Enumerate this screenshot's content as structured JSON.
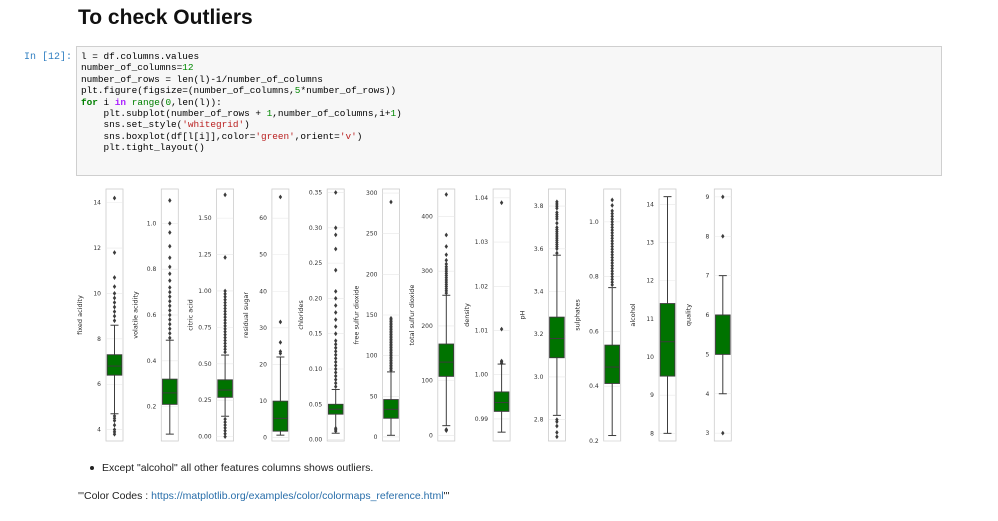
{
  "heading": "To check Outliers",
  "cell": {
    "prompt": "In [12]:",
    "code_lines": [
      [
        [
          "",
          "l = df.columns.values"
        ]
      ],
      [
        [
          "",
          "number_of_columns="
        ],
        [
          "num",
          "12"
        ]
      ],
      [
        [
          "",
          "number_of_rows = len(l)-1/number_of_columns"
        ]
      ],
      [
        [
          "",
          "plt.figure(figsize=(number_of_columns,"
        ],
        [
          "num",
          "5"
        ],
        [
          "",
          "*number_of_rows))"
        ]
      ],
      [
        [
          "kw",
          "for"
        ],
        [
          "",
          " i "
        ],
        [
          "op",
          "in"
        ],
        [
          "",
          " "
        ],
        [
          "bi",
          "range"
        ],
        [
          "",
          "("
        ],
        [
          "num",
          "0"
        ],
        [
          "",
          ",len(l)):"
        ]
      ],
      [
        [
          "",
          "    plt.subplot(number_of_rows + "
        ],
        [
          "num",
          "1"
        ],
        [
          "",
          ",number_of_columns,i+"
        ],
        [
          "num",
          "1"
        ],
        [
          "",
          ")"
        ]
      ],
      [
        [
          "",
          "    sns.set_style("
        ],
        [
          "str",
          "'whitegrid'"
        ],
        [
          "",
          ")"
        ]
      ],
      [
        [
          "",
          "    sns.boxplot(df[l[i]],color="
        ],
        [
          "str",
          "'green'"
        ],
        [
          "",
          ",orient="
        ],
        [
          "str",
          "'v'"
        ],
        [
          "",
          ")"
        ]
      ],
      [
        [
          "",
          "    plt.tight_layout()"
        ]
      ]
    ]
  },
  "chart_data": [
    {
      "type": "box",
      "ylabel": "fixed acidity",
      "ylim": [
        3.5,
        14.6
      ],
      "yticks": [
        4,
        6,
        8,
        10,
        12,
        14
      ],
      "whisker_low": 4.7,
      "q1": 6.4,
      "median": 6.8,
      "q3": 7.3,
      "whisker_high": 8.6,
      "outliers": [
        3.8,
        3.9,
        4.0,
        4.2,
        4.4,
        4.5,
        4.6,
        8.8,
        9.0,
        9.2,
        9.4,
        9.6,
        9.8,
        10.0,
        10.3,
        10.7,
        11.8,
        14.2
      ]
    },
    {
      "type": "box",
      "ylabel": "volatile acidity",
      "ylim": [
        0.05,
        1.15
      ],
      "yticks": [
        0.2,
        0.4,
        0.6,
        0.8,
        1.0
      ],
      "whisker_low": 0.08,
      "q1": 0.21,
      "median": 0.26,
      "q3": 0.32,
      "whisker_high": 0.49,
      "outliers": [
        0.5,
        0.52,
        0.54,
        0.56,
        0.58,
        0.6,
        0.62,
        0.64,
        0.66,
        0.68,
        0.7,
        0.72,
        0.75,
        0.78,
        0.81,
        0.85,
        0.9,
        0.96,
        1.0,
        1.1
      ]
    },
    {
      "type": "box",
      "ylabel": "citric acid",
      "ylim": [
        -0.03,
        1.7
      ],
      "yticks": [
        0.0,
        0.25,
        0.5,
        0.75,
        1.0,
        1.25,
        1.5
      ],
      "whisker_low": 0.14,
      "q1": 0.27,
      "median": 0.32,
      "q3": 0.39,
      "whisker_high": 0.56,
      "outliers": [
        0.0,
        0.02,
        0.04,
        0.06,
        0.08,
        0.1,
        0.12,
        0.58,
        0.6,
        0.62,
        0.64,
        0.66,
        0.68,
        0.7,
        0.72,
        0.74,
        0.76,
        0.78,
        0.8,
        0.82,
        0.84,
        0.86,
        0.88,
        0.9,
        0.92,
        0.94,
        0.96,
        0.98,
        1.0,
        1.23,
        1.66
      ]
    },
    {
      "type": "box",
      "ylabel": "residual sugar",
      "ylim": [
        -1,
        68
      ],
      "yticks": [
        0,
        10,
        20,
        30,
        40,
        50,
        60
      ],
      "whisker_low": 0.6,
      "q1": 1.7,
      "median": 5.2,
      "q3": 9.9,
      "whisker_high": 22,
      "outliers": [
        23,
        23.5,
        26,
        31.6,
        65.8
      ]
    },
    {
      "type": "box",
      "ylabel": "chlorides",
      "ylim": [
        -0.002,
        0.355
      ],
      "yticks": [
        0.0,
        0.05,
        0.1,
        0.15,
        0.2,
        0.25,
        0.3,
        0.35
      ],
      "whisker_low": 0.009,
      "q1": 0.036,
      "median": 0.043,
      "q3": 0.05,
      "whisker_high": 0.071,
      "outliers": [
        0.012,
        0.014,
        0.016,
        0.075,
        0.08,
        0.085,
        0.09,
        0.095,
        0.1,
        0.105,
        0.11,
        0.115,
        0.12,
        0.125,
        0.13,
        0.135,
        0.14,
        0.15,
        0.16,
        0.17,
        0.18,
        0.19,
        0.2,
        0.21,
        0.24,
        0.27,
        0.29,
        0.3,
        0.35
      ]
    },
    {
      "type": "box",
      "ylabel": "free sulfur dioxide",
      "ylim": [
        -5,
        305
      ],
      "yticks": [
        0,
        50,
        100,
        150,
        200,
        250,
        300
      ],
      "whisker_low": 2,
      "q1": 23,
      "median": 34,
      "q3": 46,
      "whisker_high": 80,
      "outliers": [
        82,
        84,
        86,
        88,
        90,
        92,
        94,
        96,
        98,
        100,
        102,
        104,
        106,
        108,
        110,
        112,
        114,
        116,
        118,
        120,
        122,
        124,
        126,
        128,
        130,
        132,
        134,
        136,
        138,
        140,
        142,
        144,
        146,
        289
      ]
    },
    {
      "type": "box",
      "ylabel": "total sulfur dioxide",
      "ylim": [
        -10,
        450
      ],
      "yticks": [
        0,
        100,
        200,
        300,
        400
      ],
      "whisker_low": 18,
      "q1": 108,
      "median": 134,
      "q3": 167,
      "whisker_high": 256,
      "outliers": [
        9,
        10,
        11,
        260,
        264,
        268,
        272,
        276,
        280,
        284,
        288,
        292,
        296,
        300,
        304,
        308,
        313,
        320,
        330,
        345,
        366,
        440
      ]
    },
    {
      "type": "box",
      "ylabel": "density",
      "ylim": [
        0.985,
        1.042
      ],
      "yticks": [
        0.99,
        1.0,
        1.01,
        1.02,
        1.03,
        1.04
      ],
      "whisker_low": 0.987,
      "q1": 0.9917,
      "median": 0.9937,
      "q3": 0.9961,
      "whisker_high": 1.0024,
      "outliers": [
        1.0026,
        1.0029,
        1.0031,
        1.0103,
        1.0389
      ]
    },
    {
      "type": "box",
      "ylabel": "pH",
      "ylim": [
        2.7,
        3.88
      ],
      "yticks": [
        2.8,
        3.0,
        3.2,
        3.4,
        3.6,
        3.8
      ],
      "whisker_low": 2.82,
      "q1": 3.09,
      "median": 3.18,
      "q3": 3.28,
      "whisker_high": 3.57,
      "outliers": [
        2.72,
        2.74,
        2.77,
        2.79,
        2.8,
        3.58,
        3.6,
        3.61,
        3.62,
        3.63,
        3.64,
        3.65,
        3.66,
        3.67,
        3.68,
        3.69,
        3.7,
        3.72,
        3.74,
        3.75,
        3.76,
        3.77,
        3.79,
        3.8,
        3.81,
        3.82
      ]
    },
    {
      "type": "box",
      "ylabel": "sulphates",
      "ylim": [
        0.2,
        1.12
      ],
      "yticks": [
        0.2,
        0.4,
        0.6,
        0.8,
        1.0
      ],
      "whisker_low": 0.22,
      "q1": 0.41,
      "median": 0.47,
      "q3": 0.55,
      "whisker_high": 0.76,
      "outliers": [
        0.77,
        0.78,
        0.79,
        0.8,
        0.81,
        0.82,
        0.83,
        0.84,
        0.85,
        0.86,
        0.87,
        0.88,
        0.89,
        0.9,
        0.91,
        0.92,
        0.93,
        0.94,
        0.95,
        0.96,
        0.97,
        0.98,
        0.99,
        1.0,
        1.01,
        1.02,
        1.03,
        1.04,
        1.06,
        1.08
      ]
    },
    {
      "type": "box",
      "ylabel": "alcohol",
      "ylim": [
        7.8,
        14.4
      ],
      "yticks": [
        8,
        9,
        10,
        11,
        12,
        13,
        14
      ],
      "whisker_low": 8.0,
      "q1": 9.5,
      "median": 10.4,
      "q3": 11.4,
      "whisker_high": 14.2,
      "outliers": []
    },
    {
      "type": "box",
      "ylabel": "quality",
      "ylim": [
        2.8,
        9.2
      ],
      "yticks": [
        3,
        4,
        5,
        6,
        7,
        8,
        9
      ],
      "whisker_low": 4,
      "q1": 5,
      "median": 6,
      "q3": 6,
      "whisker_high": 7,
      "outliers": [
        3,
        8,
        9
      ]
    }
  ],
  "box_color": "#007300",
  "notes": {
    "bullet": "Except \"alcohol\" all other features columns shows outliers.",
    "color_codes_prefix": "'''Color Codes : ",
    "color_codes_link": "https://matplotlib.org/examples/color/colormaps_reference.html",
    "color_codes_suffix": "'''"
  }
}
